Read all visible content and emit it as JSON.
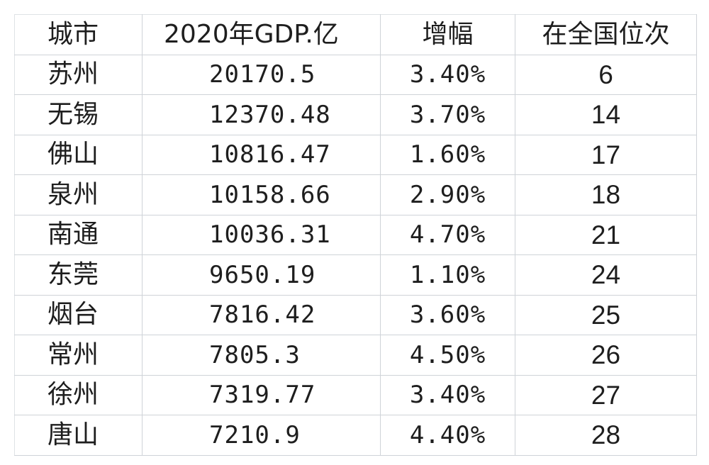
{
  "table": {
    "headers": [
      "城市",
      "2020年GDP.亿",
      "增幅",
      "在全国位次"
    ],
    "rows": [
      {
        "city": "苏州",
        "gdp": "20170.5",
        "growth": "3.40%",
        "rank": "6"
      },
      {
        "city": "无锡",
        "gdp": "12370.48",
        "growth": "3.70%",
        "rank": "14"
      },
      {
        "city": "佛山",
        "gdp": "10816.47",
        "growth": "1.60%",
        "rank": "17"
      },
      {
        "city": "泉州",
        "gdp": "10158.66",
        "growth": "2.90%",
        "rank": "18"
      },
      {
        "city": "南通",
        "gdp": "10036.31",
        "growth": "4.70%",
        "rank": "21"
      },
      {
        "city": "东莞",
        "gdp": "9650.19",
        "growth": "1.10%",
        "rank": "24"
      },
      {
        "city": "烟台",
        "gdp": "7816.42",
        "growth": "3.60%",
        "rank": "25"
      },
      {
        "city": "常州",
        "gdp": "7805.3",
        "growth": "4.50%",
        "rank": "26"
      },
      {
        "city": "徐州",
        "gdp": "7319.77",
        "growth": "3.40%",
        "rank": "27"
      },
      {
        "city": "唐山",
        "gdp": "7210.9",
        "growth": "4.40%",
        "rank": "28"
      }
    ]
  },
  "colors": {
    "gridline": "#cfd3d8",
    "text": "#1e1e1e",
    "background": "#ffffff"
  }
}
